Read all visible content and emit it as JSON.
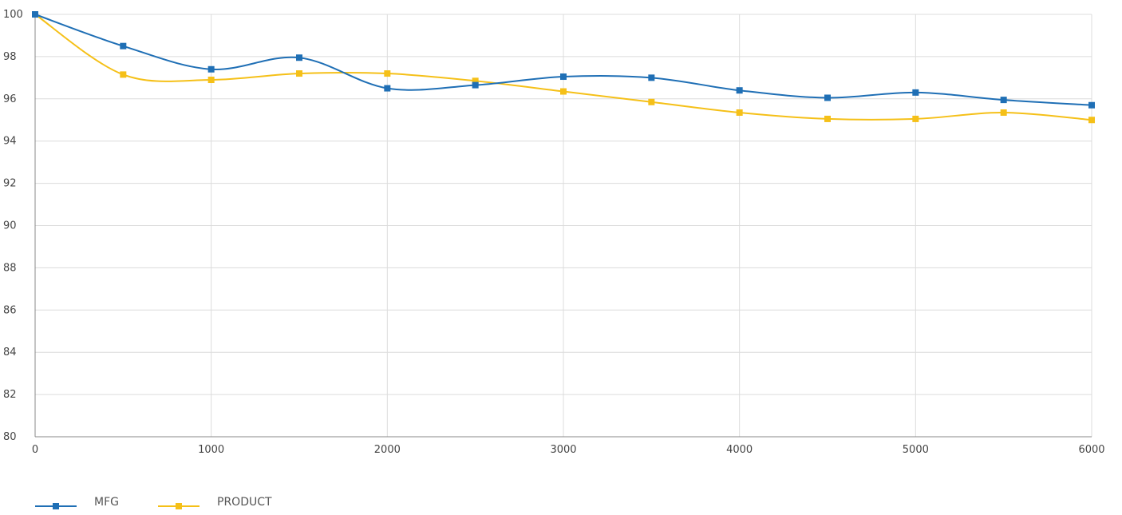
{
  "chart_data": {
    "type": "line",
    "title": "",
    "xlabel": "",
    "ylabel": "",
    "xlim": [
      0,
      6000
    ],
    "ylim": [
      80,
      100
    ],
    "x_ticks": [
      0,
      1000,
      2000,
      3000,
      4000,
      5000,
      6000
    ],
    "y_ticks": [
      80,
      82,
      84,
      86,
      88,
      90,
      92,
      94,
      96,
      98,
      100
    ],
    "grid": true,
    "legend_position": "bottom-left",
    "x": [
      0,
      500,
      1000,
      1500,
      2000,
      2500,
      3000,
      3500,
      4000,
      4500,
      5000,
      5500,
      6000
    ],
    "series": [
      {
        "name": "MFG",
        "color": "#1f6fb5",
        "values": [
          100,
          98.5,
          97.4,
          97.95,
          96.5,
          96.65,
          97.05,
          97.0,
          96.4,
          96.05,
          96.3,
          95.95,
          95.7
        ]
      },
      {
        "name": "PRODUCT",
        "color": "#f5c018",
        "values": [
          100,
          97.15,
          96.9,
          97.2,
          97.2,
          96.85,
          96.35,
          95.85,
          95.35,
          95.05,
          95.05,
          95.35,
          95.0
        ]
      }
    ]
  }
}
